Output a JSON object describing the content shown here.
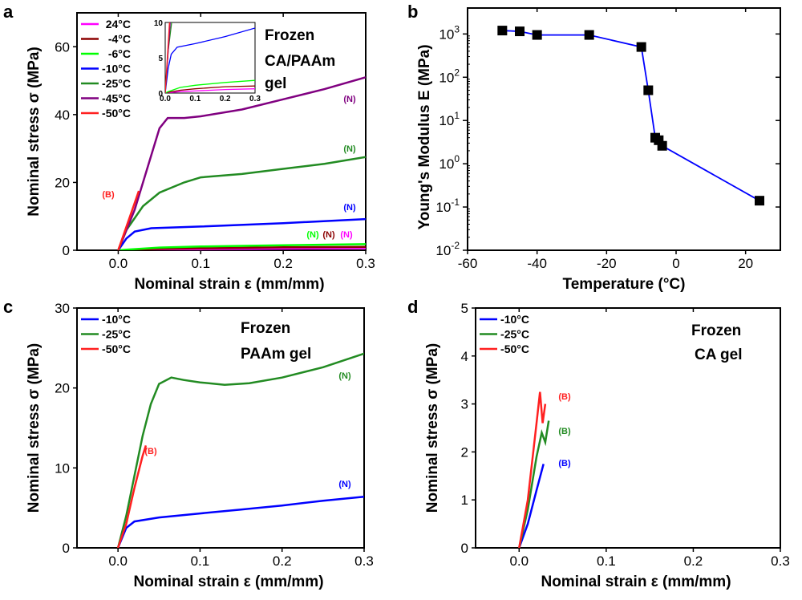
{
  "chart_data": [
    {
      "panel": "a",
      "type": "line",
      "xlabel": "Nominal strain ε (mm/mm)",
      "ylabel": "Nominal stress σ (MPa)",
      "xlim": [
        -0.05,
        0.3
      ],
      "ylim": [
        0,
        70
      ],
      "xticks": [
        "0.0",
        "0.1",
        "0.2",
        "0.3"
      ],
      "yticks": [
        "0",
        "20",
        "40",
        "60"
      ],
      "annotation": [
        "Frozen",
        "CA/PAAm",
        "gel"
      ],
      "legend_position": "top-left",
      "series": [
        {
          "name": "24°C",
          "color": "#ff00ff",
          "points": [
            [
              0,
              0
            ],
            [
              0.01,
              0.05
            ],
            [
              0.05,
              0.2
            ],
            [
              0.1,
              0.3
            ],
            [
              0.2,
              0.5
            ],
            [
              0.3,
              0.6
            ]
          ],
          "end_label": "(N)"
        },
        {
          "name": "-4°C",
          "color": "#8b0000",
          "points": [
            [
              0,
              0
            ],
            [
              0.01,
              0.1
            ],
            [
              0.05,
              0.4
            ],
            [
              0.1,
              0.6
            ],
            [
              0.2,
              0.9
            ],
            [
              0.3,
              1.0
            ]
          ],
          "end_label": "(N)"
        },
        {
          "name": "-6°C",
          "color": "#00ff00",
          "points": [
            [
              0,
              0
            ],
            [
              0.01,
              0.2
            ],
            [
              0.05,
              0.8
            ],
            [
              0.1,
              1.1
            ],
            [
              0.2,
              1.5
            ],
            [
              0.3,
              1.8
            ]
          ],
          "end_label": "(N)"
        },
        {
          "name": "-10°C",
          "color": "#0000ff",
          "points": [
            [
              0,
              0
            ],
            [
              0.01,
              3.5
            ],
            [
              0.02,
              5.5
            ],
            [
              0.04,
              6.5
            ],
            [
              0.1,
              7.0
            ],
            [
              0.2,
              8.0
            ],
            [
              0.3,
              9.2
            ]
          ],
          "end_label": "(N)"
        },
        {
          "name": "-25°C",
          "color": "#228b22",
          "points": [
            [
              0,
              0
            ],
            [
              0.01,
              6
            ],
            [
              0.03,
              13
            ],
            [
              0.05,
              17
            ],
            [
              0.08,
              20
            ],
            [
              0.1,
              21.5
            ],
            [
              0.15,
              22.5
            ],
            [
              0.2,
              24
            ],
            [
              0.25,
              25.5
            ],
            [
              0.3,
              27.5
            ]
          ],
          "end_label": "(N)"
        },
        {
          "name": "-45°C",
          "color": "#800080",
          "points": [
            [
              0,
              0
            ],
            [
              0.02,
              12
            ],
            [
              0.04,
              28
            ],
            [
              0.05,
              36
            ],
            [
              0.06,
              39
            ],
            [
              0.08,
              39
            ],
            [
              0.1,
              39.5
            ],
            [
              0.15,
              41.5
            ],
            [
              0.2,
              44.5
            ],
            [
              0.25,
              47.5
            ],
            [
              0.3,
              51
            ]
          ],
          "end_label": "(N)"
        },
        {
          "name": "-50°C",
          "color": "#ff2020",
          "points": [
            [
              0,
              0
            ],
            [
              0.01,
              7
            ],
            [
              0.02,
              14
            ],
            [
              0.025,
              17.5
            ]
          ],
          "end_label": "(B)"
        }
      ],
      "inset": {
        "xlim": [
          0,
          0.3
        ],
        "ylim": [
          0,
          10
        ],
        "xticks": [
          "0.0",
          "0.1",
          "0.2",
          "0.3"
        ],
        "yticks": [
          "0",
          "5",
          "10"
        ]
      }
    },
    {
      "panel": "b",
      "type": "scatter",
      "xlabel": "Temperature (°C)",
      "ylabel": "Young's Modulus E (MPa)",
      "xlim": [
        -60,
        30
      ],
      "ylim_log10": [
        -2,
        3.6
      ],
      "yscale": "log",
      "xticks": [
        "-60",
        "-40",
        "-20",
        "0",
        "20"
      ],
      "yticks": [
        "10-2",
        "10-1",
        "100",
        "101",
        "102",
        "103"
      ],
      "color": "#0000ff",
      "points": [
        {
          "x": -50,
          "y": 1200
        },
        {
          "x": -45,
          "y": 1150
        },
        {
          "x": -40,
          "y": 950
        },
        {
          "x": -25,
          "y": 950
        },
        {
          "x": -10,
          "y": 500
        },
        {
          "x": -8,
          "y": 50
        },
        {
          "x": -6,
          "y": 4.0
        },
        {
          "x": -5,
          "y": 3.5
        },
        {
          "x": -4,
          "y": 2.6
        },
        {
          "x": 24,
          "y": 0.14
        }
      ]
    },
    {
      "panel": "c",
      "type": "line",
      "xlabel": "Nominal strain ε (mm/mm)",
      "ylabel": "Nominal stress σ (MPa)",
      "xlim": [
        -0.05,
        0.3
      ],
      "ylim": [
        0,
        30
      ],
      "xticks": [
        "0.0",
        "0.1",
        "0.2",
        "0.3"
      ],
      "yticks": [
        "0",
        "10",
        "20",
        "30"
      ],
      "annotation": [
        "Frozen",
        "PAAm gel"
      ],
      "legend_position": "top-left",
      "series": [
        {
          "name": "-10°C",
          "color": "#0000ff",
          "points": [
            [
              0,
              0
            ],
            [
              0.01,
              2.5
            ],
            [
              0.02,
              3.3
            ],
            [
              0.05,
              3.8
            ],
            [
              0.1,
              4.3
            ],
            [
              0.15,
              4.8
            ],
            [
              0.2,
              5.3
            ],
            [
              0.25,
              5.9
            ],
            [
              0.3,
              6.4
            ]
          ],
          "end_label": "(N)"
        },
        {
          "name": "-25°C",
          "color": "#228b22",
          "points": [
            [
              0,
              0
            ],
            [
              0.01,
              4
            ],
            [
              0.02,
              9
            ],
            [
              0.03,
              14
            ],
            [
              0.04,
              18
            ],
            [
              0.05,
              20.5
            ],
            [
              0.065,
              21.3
            ],
            [
              0.08,
              21.0
            ],
            [
              0.1,
              20.7
            ],
            [
              0.13,
              20.4
            ],
            [
              0.16,
              20.6
            ],
            [
              0.2,
              21.3
            ],
            [
              0.25,
              22.6
            ],
            [
              0.3,
              24.3
            ]
          ],
          "end_label": "(N)"
        },
        {
          "name": "-50°C",
          "color": "#ff2020",
          "points": [
            [
              0,
              0
            ],
            [
              0.01,
              3
            ],
            [
              0.02,
              7.5
            ],
            [
              0.03,
              11.5
            ],
            [
              0.034,
              12.8
            ]
          ],
          "end_label": "(B)"
        }
      ]
    },
    {
      "panel": "d",
      "type": "line",
      "xlabel": "Nominal strain ε (mm/mm)",
      "ylabel": "Nominal stress σ (MPa)",
      "xlim": [
        -0.05,
        0.3
      ],
      "ylim": [
        0,
        5
      ],
      "xticks": [
        "0.0",
        "0.1",
        "0.2",
        "0.3"
      ],
      "yticks": [
        "0",
        "1",
        "2",
        "3",
        "4",
        "5"
      ],
      "annotation": [
        "Frozen",
        "CA gel"
      ],
      "legend_position": "top-left",
      "series": [
        {
          "name": "-10°C",
          "color": "#0000ff",
          "points": [
            [
              0,
              0
            ],
            [
              0.01,
              0.5
            ],
            [
              0.02,
              1.2
            ],
            [
              0.028,
              1.75
            ]
          ],
          "end_label": "(B)"
        },
        {
          "name": "-25°C",
          "color": "#228b22",
          "points": [
            [
              0,
              0
            ],
            [
              0.01,
              0.8
            ],
            [
              0.02,
              1.9
            ],
            [
              0.026,
              2.4
            ],
            [
              0.03,
              2.2
            ],
            [
              0.034,
              2.65
            ]
          ],
          "end_label": "(B)"
        },
        {
          "name": "-50°C",
          "color": "#ff2020",
          "points": [
            [
              0,
              0
            ],
            [
              0.01,
              1.0
            ],
            [
              0.02,
              2.6
            ],
            [
              0.024,
              3.25
            ],
            [
              0.027,
              2.6
            ],
            [
              0.03,
              3.0
            ]
          ],
          "end_label": "(B)"
        }
      ]
    }
  ]
}
